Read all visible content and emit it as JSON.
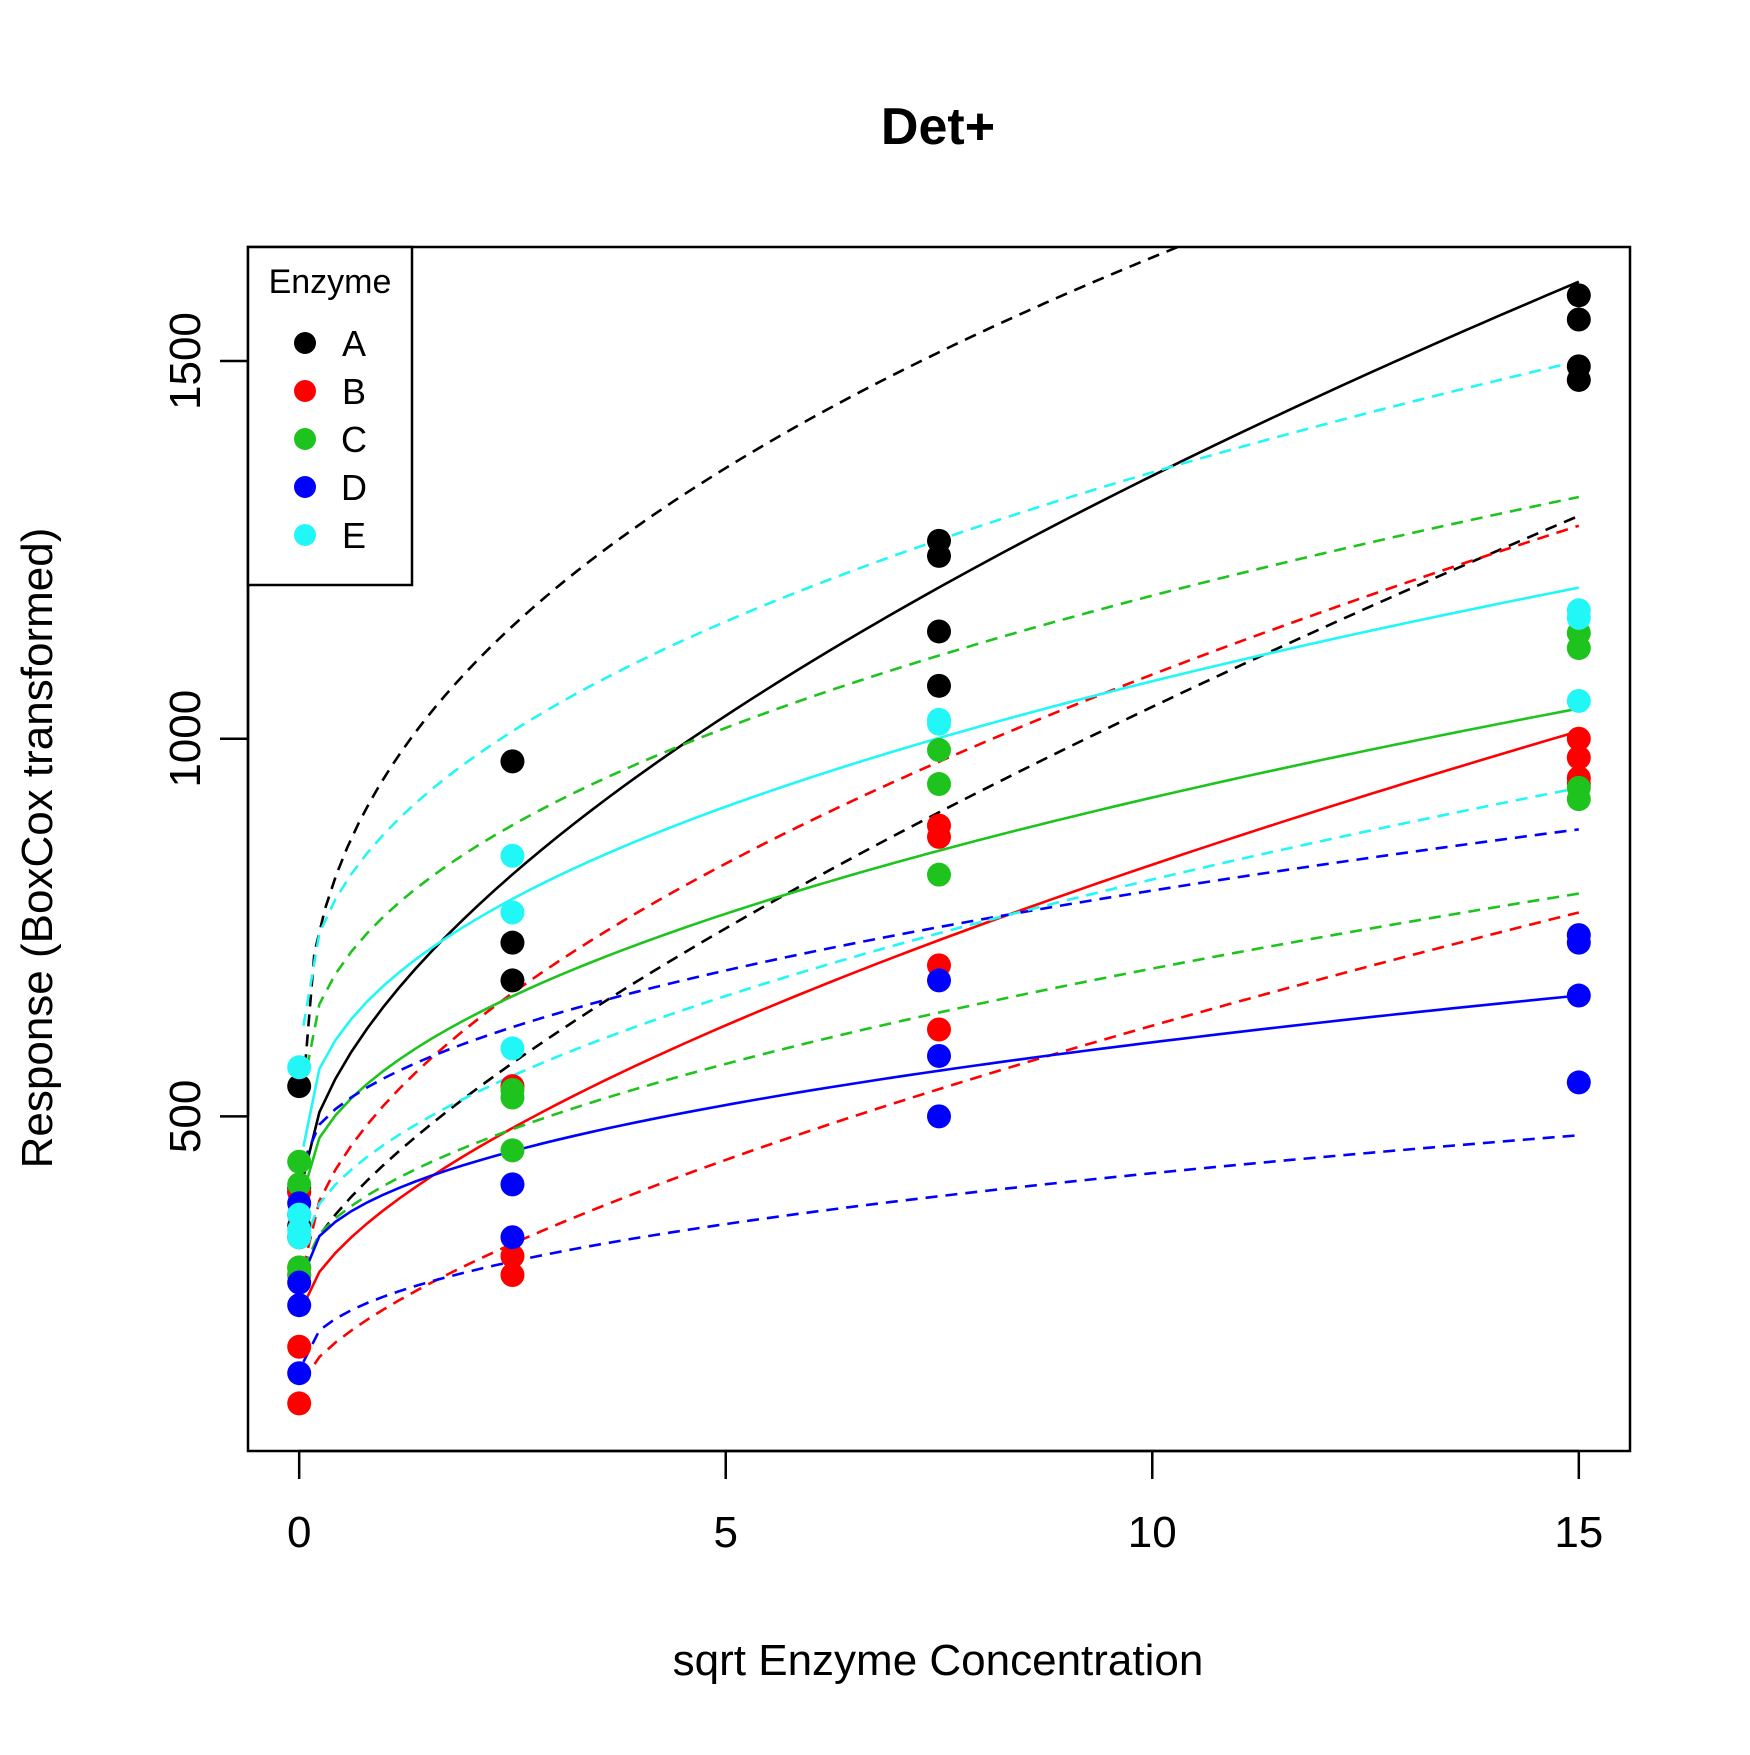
{
  "chart_data": {
    "type": "scatter",
    "title": "Det+",
    "xlabel": "sqrt Enzyme Concentration",
    "ylabel": "Response (BoxCox transformed)",
    "xlim": [
      -0.6,
      15.6
    ],
    "ylim": [
      57,
      1651
    ],
    "x_ticks": [
      0,
      5,
      10,
      15
    ],
    "y_ticks": [
      500,
      1000,
      1500
    ],
    "grid": false,
    "legend": {
      "title": "Enzyme",
      "position": "top-left",
      "entries": [
        "A",
        "B",
        "C",
        "D",
        "E"
      ]
    },
    "series": [
      {
        "name": "A",
        "color": "#000000",
        "points": [
          [
            0,
            340
          ],
          [
            0,
            355
          ],
          [
            0,
            400
          ],
          [
            0,
            405
          ],
          [
            0,
            540
          ],
          [
            2.5,
            680
          ],
          [
            2.5,
            730
          ],
          [
            2.5,
            970
          ],
          [
            7.5,
            1070
          ],
          [
            7.5,
            1142
          ],
          [
            7.5,
            1242
          ],
          [
            7.5,
            1262
          ],
          [
            15,
            1475
          ],
          [
            15,
            1493
          ],
          [
            15,
            1555
          ],
          [
            15,
            1587
          ]
        ],
        "fit": {
          "x0": 0.05,
          "y0": 420,
          "x1": 15,
          "y1": 1605,
          "exp": 0.6
        },
        "bands": [
          {
            "x0": 0.05,
            "y0": 540,
            "x1": 10.3,
            "y1": 1651,
            "exp": 0.42
          },
          {
            "x0": 0.05,
            "y0": 300,
            "x1": 15,
            "y1": 1295,
            "exp": 0.72
          }
        ]
      },
      {
        "name": "B",
        "color": "#ff0000",
        "points": [
          [
            0,
            120
          ],
          [
            0,
            195
          ],
          [
            0,
            290
          ],
          [
            0,
            300
          ],
          [
            0,
            400
          ],
          [
            2.5,
            290
          ],
          [
            2.5,
            315
          ],
          [
            2.5,
            540
          ],
          [
            7.5,
            615
          ],
          [
            7.5,
            700
          ],
          [
            7.5,
            870
          ],
          [
            7.5,
            885
          ],
          [
            15,
            940
          ],
          [
            15,
            948
          ],
          [
            15,
            975
          ],
          [
            15,
            1000
          ]
        ],
        "fit": {
          "x0": 0.05,
          "y0": 250,
          "x1": 15,
          "y1": 1010,
          "exp": 0.65
        },
        "bands": [
          {
            "x0": 0.05,
            "y0": 300,
            "x1": 15,
            "y1": 1282,
            "exp": 0.55
          },
          {
            "x0": 0.05,
            "y0": 150,
            "x1": 15,
            "y1": 770,
            "exp": 0.68
          }
        ]
      },
      {
        "name": "C",
        "color": "#1ec31e",
        "points": [
          [
            0,
            290
          ],
          [
            0,
            300
          ],
          [
            0,
            410
          ],
          [
            0,
            440
          ],
          [
            2.5,
            455
          ],
          [
            2.5,
            525
          ],
          [
            2.5,
            535
          ],
          [
            7.5,
            820
          ],
          [
            7.5,
            940
          ],
          [
            7.5,
            985
          ],
          [
            15,
            920
          ],
          [
            15,
            935
          ],
          [
            15,
            1120
          ],
          [
            15,
            1140
          ]
        ],
        "fit": {
          "x0": 0.05,
          "y0": 400,
          "x1": 15,
          "y1": 1040,
          "exp": 0.5
        },
        "bands": [
          {
            "x0": 0.05,
            "y0": 540,
            "x1": 15,
            "y1": 1320,
            "exp": 0.45
          },
          {
            "x0": 0.05,
            "y0": 300,
            "x1": 15,
            "y1": 795,
            "exp": 0.55
          }
        ]
      },
      {
        "name": "D",
        "color": "#0000ff",
        "points": [
          [
            0,
            160
          ],
          [
            0,
            250
          ],
          [
            0,
            280
          ],
          [
            0,
            370
          ],
          [
            0,
            385
          ],
          [
            2.5,
            340
          ],
          [
            2.5,
            410
          ],
          [
            7.5,
            500
          ],
          [
            7.5,
            580
          ],
          [
            7.5,
            680
          ],
          [
            15,
            545
          ],
          [
            15,
            660
          ],
          [
            15,
            730
          ],
          [
            15,
            740
          ]
        ],
        "fit": {
          "x0": 0.05,
          "y0": 290,
          "x1": 15,
          "y1": 660,
          "exp": 0.45
        },
        "bands": [
          {
            "x0": 0.05,
            "y0": 440,
            "x1": 15,
            "y1": 880,
            "exp": 0.5
          },
          {
            "x0": 0.05,
            "y0": 175,
            "x1": 15,
            "y1": 475,
            "exp": 0.45
          }
        ]
      },
      {
        "name": "E",
        "color": "#21f7f7",
        "points": [
          [
            0,
            340
          ],
          [
            0,
            350
          ],
          [
            0,
            370
          ],
          [
            0,
            565
          ],
          [
            2.5,
            590
          ],
          [
            2.5,
            770
          ],
          [
            2.5,
            845
          ],
          [
            7.5,
            1020
          ],
          [
            7.5,
            1025
          ],
          [
            15,
            1050
          ],
          [
            15,
            1160
          ],
          [
            15,
            1170
          ]
        ],
        "fit": {
          "x0": 0.05,
          "y0": 460,
          "x1": 15,
          "y1": 1200,
          "exp": 0.45
        },
        "bands": [
          {
            "x0": 0.05,
            "y0": 620,
            "x1": 15,
            "y1": 1500,
            "exp": 0.45
          },
          {
            "x0": 0.05,
            "y0": 330,
            "x1": 15,
            "y1": 935,
            "exp": 0.55
          }
        ]
      }
    ]
  }
}
